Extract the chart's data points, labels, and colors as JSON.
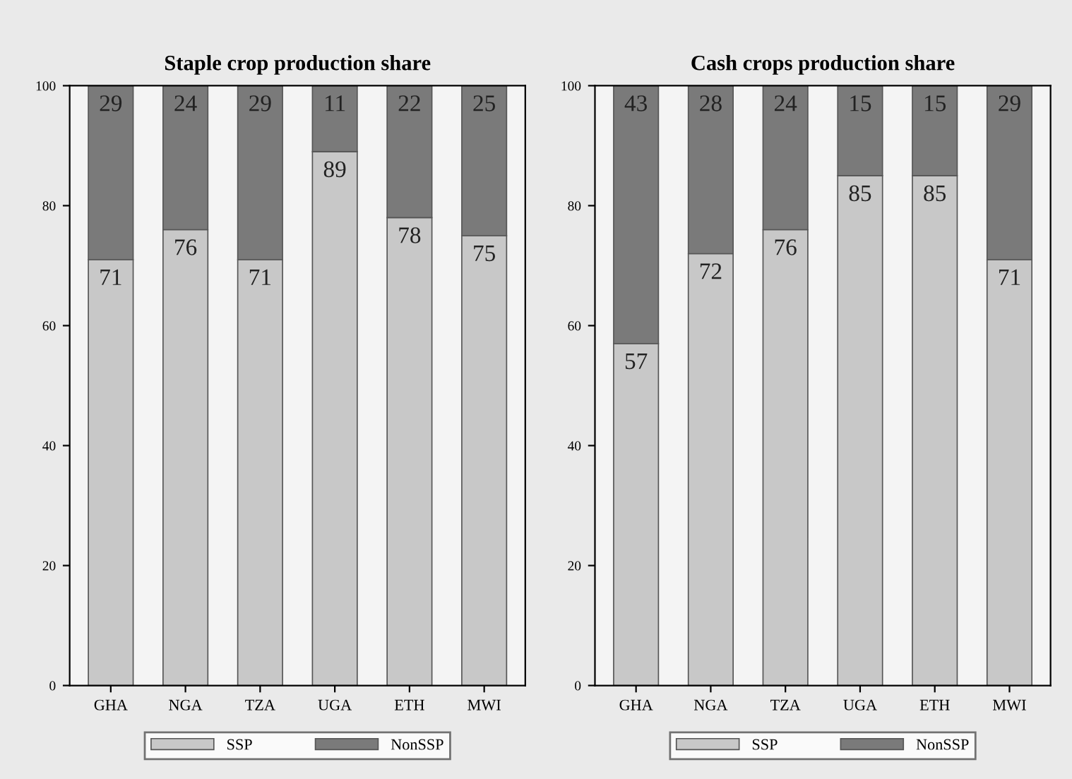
{
  "chart_data": [
    {
      "type": "bar",
      "title": "Staple crop production share",
      "categories": [
        "GHA",
        "NGA",
        "TZA",
        "UGA",
        "ETH",
        "MWI"
      ],
      "stacked": true,
      "ylim": [
        0,
        100
      ],
      "yticks": [
        0,
        20,
        40,
        60,
        80,
        100
      ],
      "grid": false,
      "legend": "bottom",
      "data_labels": true,
      "series": [
        {
          "name": "SSP",
          "color": "#c8c8c8",
          "values": [
            71,
            76,
            71,
            89,
            78,
            75
          ]
        },
        {
          "name": "NonSSP",
          "color": "#7a7a7a",
          "values": [
            29,
            24,
            29,
            11,
            22,
            25
          ]
        }
      ]
    },
    {
      "type": "bar",
      "title": "Cash crops production share",
      "categories": [
        "GHA",
        "NGA",
        "TZA",
        "UGA",
        "ETH",
        "MWI"
      ],
      "stacked": true,
      "ylim": [
        0,
        100
      ],
      "yticks": [
        0,
        20,
        40,
        60,
        80,
        100
      ],
      "grid": false,
      "legend": "bottom",
      "data_labels": true,
      "series": [
        {
          "name": "SSP",
          "color": "#c8c8c8",
          "values": [
            57,
            72,
            76,
            85,
            85,
            71
          ]
        },
        {
          "name": "NonSSP",
          "color": "#7a7a7a",
          "values": [
            43,
            28,
            24,
            15,
            15,
            29
          ]
        }
      ]
    }
  ]
}
